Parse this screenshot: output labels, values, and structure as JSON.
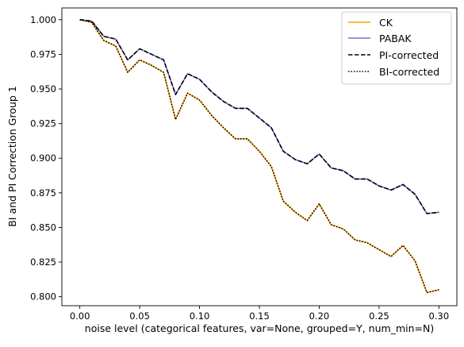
{
  "chart_data": {
    "type": "line",
    "title": "",
    "xlabel": "noise level (categorical features, var=None, grouped=Y, num_min=N)",
    "ylabel": "BI and PI Correction Group 1",
    "xlim": [
      -0.015,
      0.315
    ],
    "ylim": [
      0.7935,
      1.0085
    ],
    "xticks": [
      0.0,
      0.05,
      0.1,
      0.15,
      0.2,
      0.25,
      0.3
    ],
    "xtick_labels": [
      "0.00",
      "0.05",
      "0.10",
      "0.15",
      "0.20",
      "0.25",
      "0.30"
    ],
    "yticks": [
      0.8,
      0.825,
      0.85,
      0.875,
      0.9,
      0.925,
      0.95,
      0.975,
      1.0
    ],
    "ytick_labels": [
      "0.800",
      "0.825",
      "0.850",
      "0.875",
      "0.900",
      "0.925",
      "0.950",
      "0.975",
      "1.000"
    ],
    "grid": false,
    "legend_position": "top-right",
    "x": [
      0.0,
      0.01,
      0.02,
      0.03,
      0.04,
      0.05,
      0.06,
      0.07,
      0.08,
      0.09,
      0.1,
      0.11,
      0.12,
      0.13,
      0.14,
      0.15,
      0.16,
      0.17,
      0.18,
      0.19,
      0.2,
      0.21,
      0.22,
      0.23,
      0.24,
      0.25,
      0.26,
      0.27,
      0.28,
      0.29,
      0.3
    ],
    "series": [
      {
        "name": "CK",
        "color": "#ffa500",
        "style": "solid",
        "values": [
          1.0,
          0.998,
          0.985,
          0.981,
          0.962,
          0.971,
          0.967,
          0.962,
          0.928,
          0.947,
          0.942,
          0.931,
          0.922,
          0.914,
          0.914,
          0.905,
          0.894,
          0.869,
          0.861,
          0.855,
          0.867,
          0.852,
          0.849,
          0.841,
          0.839,
          0.834,
          0.829,
          0.837,
          0.826,
          0.803,
          0.805
        ]
      },
      {
        "name": "PABAK",
        "color": "#7b6fdb",
        "style": "solid",
        "values": [
          1.0,
          0.999,
          0.988,
          0.986,
          0.971,
          0.979,
          0.975,
          0.971,
          0.946,
          0.961,
          0.957,
          0.948,
          0.941,
          0.936,
          0.936,
          0.929,
          0.922,
          0.905,
          0.899,
          0.896,
          0.903,
          0.893,
          0.891,
          0.885,
          0.885,
          0.88,
          0.877,
          0.881,
          0.874,
          0.86,
          0.861
        ]
      },
      {
        "name": "PI-corrected",
        "color": "#000000",
        "style": "dashed",
        "values": [
          1.0,
          0.999,
          0.988,
          0.986,
          0.971,
          0.979,
          0.975,
          0.971,
          0.946,
          0.961,
          0.957,
          0.948,
          0.941,
          0.936,
          0.936,
          0.929,
          0.922,
          0.905,
          0.899,
          0.896,
          0.903,
          0.893,
          0.891,
          0.885,
          0.885,
          0.88,
          0.877,
          0.881,
          0.874,
          0.86,
          0.861
        ]
      },
      {
        "name": "BI-corrected",
        "color": "#000000",
        "style": "dotted",
        "values": [
          1.0,
          0.998,
          0.985,
          0.981,
          0.962,
          0.971,
          0.967,
          0.962,
          0.928,
          0.947,
          0.942,
          0.931,
          0.922,
          0.914,
          0.914,
          0.905,
          0.894,
          0.869,
          0.861,
          0.855,
          0.867,
          0.852,
          0.849,
          0.841,
          0.839,
          0.834,
          0.829,
          0.837,
          0.826,
          0.803,
          0.805
        ]
      }
    ]
  }
}
